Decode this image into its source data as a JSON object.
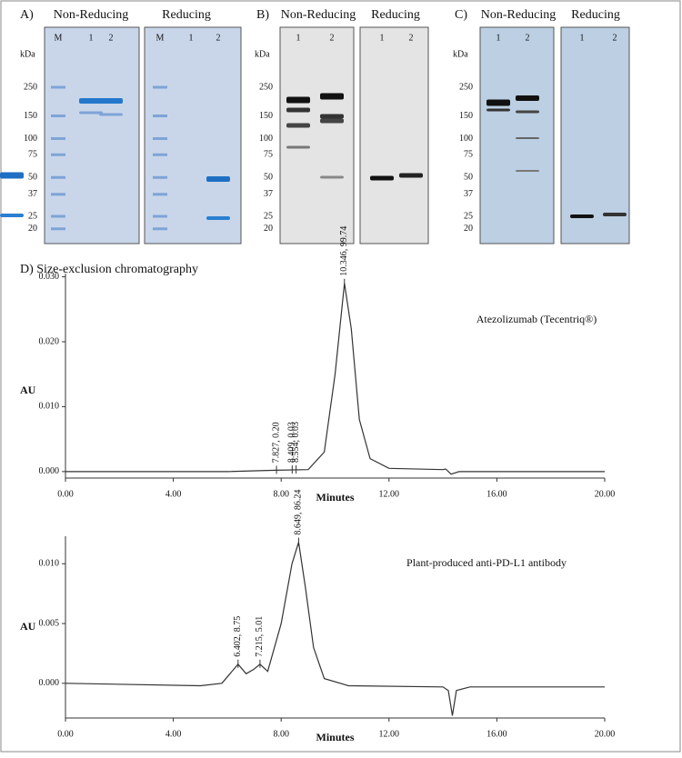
{
  "gels": [
    {
      "label": "A)",
      "unit": "kDa",
      "markers": [
        250,
        150,
        100,
        75,
        50,
        37,
        25,
        20
      ],
      "groups": [
        {
          "title": "Non-Reducing",
          "lanes": [
            "M",
            "1",
            "2"
          ]
        },
        {
          "title": "Reducing",
          "lanes": [
            "M",
            "1",
            "2"
          ]
        }
      ]
    },
    {
      "label": "B)",
      "unit": "kDa",
      "markers": [
        250,
        150,
        100,
        75,
        50,
        37,
        25,
        20
      ],
      "groups": [
        {
          "title": "Non-Reducing",
          "lanes": [
            "1",
            "2"
          ]
        },
        {
          "title": "Reducing",
          "lanes": [
            "1",
            "2"
          ]
        }
      ]
    },
    {
      "label": "C)",
      "unit": "kDa",
      "markers": [
        250,
        150,
        100,
        75,
        50,
        37,
        25,
        20
      ],
      "groups": [
        {
          "title": "Non-Reducing",
          "lanes": [
            "1",
            "2"
          ]
        },
        {
          "title": "Reducing",
          "lanes": [
            "1",
            "2"
          ]
        }
      ]
    }
  ],
  "section_title": "D) Size-exclusion chromatography",
  "chart_data": [
    {
      "type": "line",
      "title": "Atezolizumab (Tecentriq®)",
      "x_label": "Minutes",
      "y_label": "AU",
      "color": "#333333",
      "xlim": [
        0,
        20
      ],
      "ylim": [
        -0.001,
        0.0305
      ],
      "xticks": [
        {
          "value": 0,
          "label": "0.00"
        },
        {
          "value": 4,
          "label": "4.00"
        },
        {
          "value": 8,
          "label": "8.00"
        },
        {
          "value": 12,
          "label": "12.00"
        },
        {
          "value": 16,
          "label": "16.00"
        },
        {
          "value": 20,
          "label": "20.00"
        }
      ],
      "yticks": [
        {
          "value": 0,
          "label": "0.000"
        },
        {
          "value": 0.01,
          "label": "0.010"
        },
        {
          "value": 0.02,
          "label": "0.020"
        },
        {
          "value": 0.03,
          "label": "0.030"
        }
      ],
      "x": [
        0,
        6,
        7.8,
        9,
        9.6,
        10,
        10.346,
        10.6,
        10.9,
        11.3,
        12,
        14,
        14.1,
        14.3,
        14.6,
        20
      ],
      "values": [
        0,
        0,
        0.0002,
        0.0003,
        0.003,
        0.015,
        0.029,
        0.022,
        0.008,
        0.002,
        0.0005,
        0.0003,
        0.0004,
        -0.0004,
        0,
        0
      ],
      "annotations": [
        {
          "x": 7.827,
          "text": "7.827, 0.20"
        },
        {
          "x": 8.409,
          "text": "8.409, 0.03"
        },
        {
          "x": 8.554,
          "text": "8.554, 0.03"
        },
        {
          "x": 10.346,
          "text": "10.346, 99.74"
        }
      ]
    },
    {
      "type": "line",
      "title": "Plant-produced anti-PD-L1 antibody",
      "x_label": "Minutes",
      "y_label": "AU",
      "color": "#333333",
      "xlim": [
        0,
        20
      ],
      "ylim": [
        -0.0029,
        0.0123
      ],
      "xticks": [
        {
          "value": 0,
          "label": "0.00"
        },
        {
          "value": 4,
          "label": "4.00"
        },
        {
          "value": 8,
          "label": "8.00"
        },
        {
          "value": 12,
          "label": "12.00"
        },
        {
          "value": 16,
          "label": "16.00"
        },
        {
          "value": 20,
          "label": "20.00"
        }
      ],
      "yticks": [
        {
          "value": 0,
          "label": "0.000"
        },
        {
          "value": 0.005,
          "label": "0.005"
        },
        {
          "value": 0.01,
          "label": "0.010"
        }
      ],
      "x": [
        0,
        5,
        5.8,
        6.1,
        6.402,
        6.7,
        7,
        7.215,
        7.5,
        8,
        8.4,
        8.649,
        8.9,
        9.2,
        9.6,
        10.5,
        14,
        14.2,
        14.35,
        14.5,
        15,
        20
      ],
      "values": [
        0,
        -0.0002,
        0,
        0.0008,
        0.0016,
        0.0008,
        0.0012,
        0.0016,
        0.001,
        0.005,
        0.01,
        0.0118,
        0.008,
        0.003,
        0.0004,
        -0.0002,
        -0.0003,
        -0.0006,
        -0.0027,
        -0.0006,
        -0.0003,
        -0.0003
      ],
      "annotations": [
        {
          "x": 6.402,
          "text": "6.402, 8.75"
        },
        {
          "x": 7.215,
          "text": "7.215, 5.01"
        },
        {
          "x": 8.649,
          "text": "8.649, 86.24"
        }
      ]
    }
  ]
}
